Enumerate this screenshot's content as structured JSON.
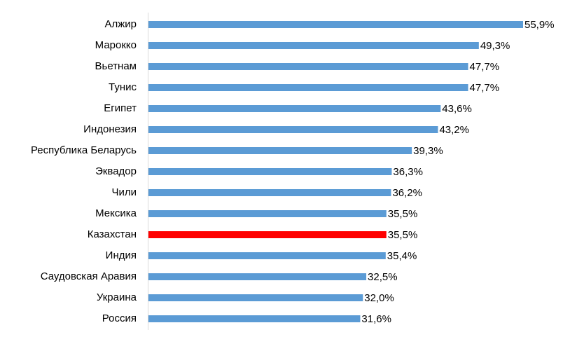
{
  "chart_data": {
    "type": "barh",
    "categories": [
      "Алжир",
      "Марокко",
      "Вьетнам",
      "Тунис",
      "Египет",
      "Индонезия",
      "Республика Беларусь",
      "Эквадор",
      "Чили",
      "Мексика",
      "Казахстан",
      "Индия",
      "Саудовская Аравия",
      "Украина",
      "Россия"
    ],
    "values": [
      55.9,
      49.3,
      47.7,
      47.7,
      43.6,
      43.2,
      39.3,
      36.3,
      36.2,
      35.5,
      35.5,
      35.4,
      32.5,
      32.0,
      31.6
    ],
    "value_labels": [
      "55,9%",
      "49,3%",
      "47,7%",
      "47,7%",
      "43,6%",
      "43,2%",
      "39,3%",
      "36,3%",
      "36,2%",
      "35,5%",
      "35,5%",
      "35,4%",
      "32,5%",
      "32,0%",
      "31,6%"
    ],
    "colors": [
      "#5b9bd5",
      "#5b9bd5",
      "#5b9bd5",
      "#5b9bd5",
      "#5b9bd5",
      "#5b9bd5",
      "#5b9bd5",
      "#5b9bd5",
      "#5b9bd5",
      "#5b9bd5",
      "#ff0000",
      "#5b9bd5",
      "#5b9bd5",
      "#5b9bd5",
      "#5b9bd5"
    ]
  }
}
